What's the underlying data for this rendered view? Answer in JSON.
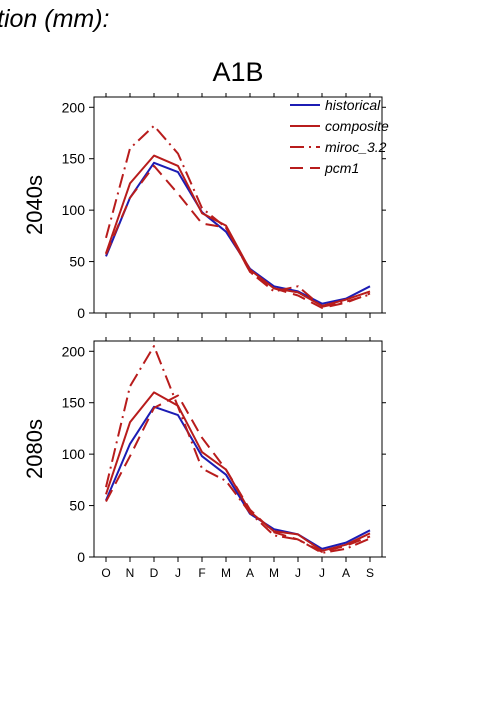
{
  "header": {
    "title": "tion (mm):"
  },
  "chart_data": {
    "type": "line",
    "scenario": "A1B",
    "categories": [
      "O",
      "N",
      "D",
      "J",
      "F",
      "M",
      "A",
      "M",
      "J",
      "J",
      "A",
      "S"
    ],
    "ylim": [
      0,
      210
    ],
    "yticks": [
      0,
      50,
      100,
      150,
      200
    ],
    "legend_position": "top-right",
    "series_styles": [
      {
        "name": "historical",
        "color": "#1c1cb4",
        "dash": ""
      },
      {
        "name": "composite",
        "color": "#b81c1c",
        "dash": ""
      },
      {
        "name": "miroc_3.2",
        "color": "#b81c1c",
        "dash": "14 5 2 5"
      },
      {
        "name": "pcm1",
        "color": "#b81c1c",
        "dash": "13 7"
      }
    ],
    "panels": [
      {
        "label": "2040s",
        "series": [
          {
            "name": "historical",
            "values": [
              55,
              112,
              146,
              137,
              98,
              79,
              43,
              26,
              21,
              9,
              14,
              26
            ]
          },
          {
            "name": "composite",
            "values": [
              58,
              126,
              153,
              143,
              97,
              85,
              42,
              24,
              20,
              7,
              13,
              21
            ]
          },
          {
            "name": "miroc_3.2",
            "values": [
              73,
              160,
              182,
              155,
              102,
              83,
              40,
              21,
              26,
              6,
              11,
              18
            ]
          },
          {
            "name": "pcm1",
            "values": [
              57,
              112,
              143,
              116,
              87,
              83,
              40,
              24,
              17,
              5,
              10,
              19
            ]
          }
        ]
      },
      {
        "label": "2080s",
        "series": [
          {
            "name": "historical",
            "values": [
              55,
              110,
              146,
              138,
              98,
              80,
              42,
              27,
              22,
              8,
              14,
              26
            ]
          },
          {
            "name": "composite",
            "values": [
              61,
              131,
              160,
              147,
              102,
              85,
              44,
              25,
              22,
              6,
              12,
              23
            ]
          },
          {
            "name": "miroc_3.2",
            "values": [
              68,
              166,
              205,
              146,
              86,
              74,
              43,
              21,
              17,
              4,
              8,
              18
            ]
          },
          {
            "name": "pcm1",
            "values": [
              54,
              98,
              145,
              157,
              116,
              85,
              46,
              24,
              17,
              5,
              11,
              20
            ]
          }
        ]
      }
    ]
  }
}
